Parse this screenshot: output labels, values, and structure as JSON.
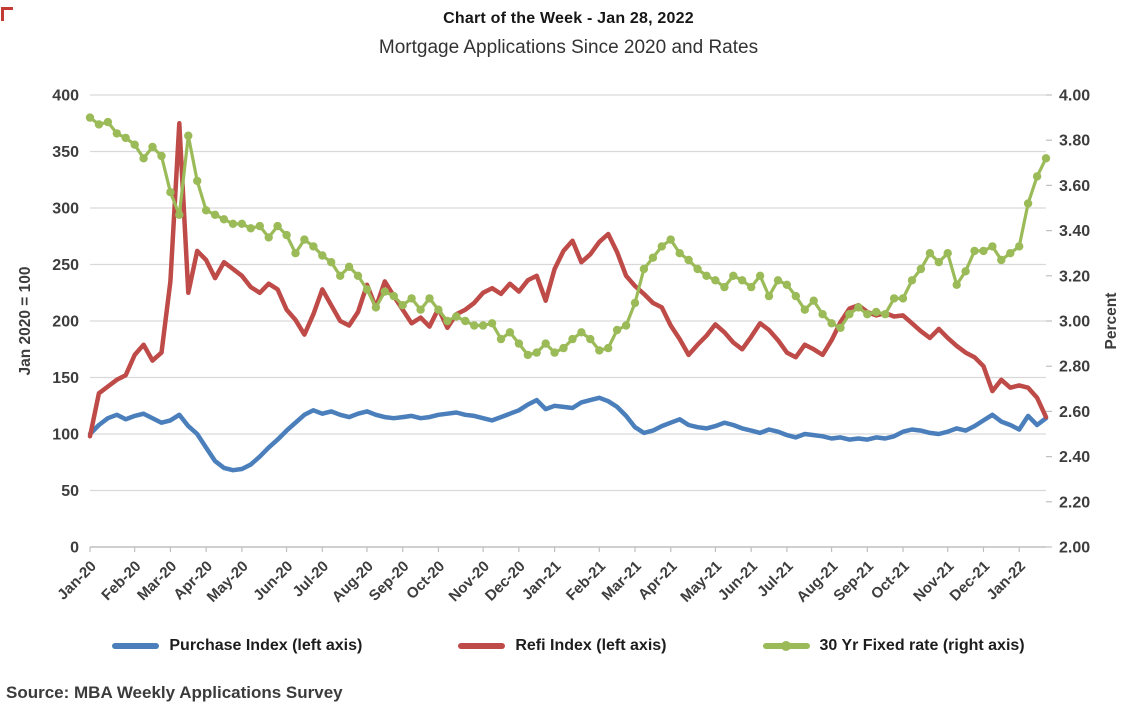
{
  "header": {
    "title": "Chart of the Week - Jan 28, 2022",
    "subtitle": "Mortgage Applications Since 2020 and Rates"
  },
  "source_note": "Source: MBA Weekly Applications Survey",
  "legend": [
    {
      "label": "Purchase Index (left axis)",
      "color": "#4a7fbc",
      "marker": false
    },
    {
      "label": "Refi Index (left axis)",
      "color": "#be4b48",
      "marker": false
    },
    {
      "label": "30 Yr Fixed rate (right axis)",
      "color": "#9bbb59",
      "marker": true
    }
  ],
  "chart_data": {
    "type": "line",
    "title": "Chart of the Week - Jan 28, 2022",
    "subtitle": "Mortgage Applications Since 2020 and Rates",
    "grid": "horizontal",
    "legend_position": "bottom",
    "x_unit": "weekly observations, Jan 2020 through Jan 2022",
    "x_tick_labels": [
      "Jan-20",
      "Feb-20",
      "Mar-20",
      "Apr-20",
      "May-20",
      "Jun-20",
      "Jul-20",
      "Aug-20",
      "Sep-20",
      "Oct-20",
      "Nov-20",
      "Dec-20",
      "Jan-21",
      "Feb-21",
      "Mar-21",
      "Apr-21",
      "May-21",
      "Jun-21",
      "Jul-21",
      "Aug-21",
      "Sep-21",
      "Oct-21",
      "Nov-21",
      "Dec-21",
      "Jan-22"
    ],
    "x_tick_index": [
      0,
      5,
      9,
      13,
      17,
      22,
      26,
      31,
      35,
      39,
      44,
      48,
      52,
      57,
      61,
      65,
      70,
      74,
      78,
      83,
      87,
      91,
      96,
      100,
      104
    ],
    "left_axis": {
      "label": "Jan 2020 = 100",
      "range": [
        0,
        400
      ],
      "ticks": [
        0,
        50,
        100,
        150,
        200,
        250,
        300,
        350,
        400
      ]
    },
    "right_axis": {
      "label": "Percent",
      "range": [
        2.0,
        4.0
      ],
      "ticks": [
        "2.00",
        "2.20",
        "2.40",
        "2.60",
        "2.80",
        "3.00",
        "3.20",
        "3.40",
        "3.60",
        "3.80",
        "4.00"
      ]
    },
    "series": [
      {
        "key": "purchase",
        "name": "Purchase Index (left axis)",
        "axis": "left",
        "color": "#4a7fbc",
        "marker": false,
        "values": [
          100,
          108,
          114,
          117,
          113,
          116,
          118,
          114,
          110,
          112,
          117,
          107,
          100,
          88,
          76,
          70,
          68,
          69,
          73,
          80,
          88,
          95,
          103,
          110,
          117,
          121,
          118,
          120,
          117,
          115,
          118,
          120,
          117,
          115,
          114,
          115,
          116,
          114,
          115,
          117,
          118,
          119,
          117,
          116,
          114,
          112,
          115,
          118,
          121,
          126,
          130,
          122,
          125,
          124,
          123,
          128,
          130,
          132,
          129,
          124,
          116,
          106,
          101,
          103,
          107,
          110,
          113,
          108,
          106,
          105,
          107,
          110,
          108,
          105,
          103,
          101,
          104,
          102,
          99,
          97,
          100,
          99,
          98,
          96,
          97,
          95,
          96,
          95,
          97,
          96,
          98,
          102,
          104,
          103,
          101,
          100,
          102,
          105,
          103,
          107,
          112,
          117,
          111,
          108,
          104,
          116,
          108,
          114
        ]
      },
      {
        "key": "refi",
        "name": "Refi Index (left axis)",
        "axis": "left",
        "color": "#be4b48",
        "marker": false,
        "values": [
          98,
          136,
          142,
          148,
          152,
          170,
          179,
          165,
          172,
          235,
          375,
          225,
          262,
          254,
          238,
          252,
          246,
          240,
          230,
          225,
          233,
          228,
          210,
          201,
          188,
          206,
          228,
          214,
          200,
          196,
          208,
          232,
          212,
          235,
          222,
          210,
          198,
          203,
          195,
          211,
          194,
          206,
          210,
          216,
          225,
          229,
          224,
          233,
          226,
          236,
          240,
          218,
          246,
          262,
          271,
          252,
          259,
          270,
          277,
          261,
          240,
          231,
          224,
          216,
          212,
          196,
          184,
          170,
          179,
          187,
          197,
          190,
          181,
          175,
          186,
          198,
          192,
          183,
          172,
          168,
          179,
          175,
          170,
          183,
          199,
          211,
          214,
          208,
          205,
          207,
          204,
          205,
          198,
          191,
          185,
          193,
          185,
          178,
          172,
          168,
          160,
          138,
          148,
          141,
          143,
          141,
          132,
          115
        ]
      },
      {
        "key": "rate",
        "name": "30 Yr Fixed rate (right axis)",
        "axis": "right",
        "color": "#9bbb59",
        "marker": true,
        "values": [
          3.9,
          3.87,
          3.88,
          3.83,
          3.81,
          3.78,
          3.72,
          3.77,
          3.73,
          3.57,
          3.47,
          3.82,
          3.62,
          3.49,
          3.47,
          3.45,
          3.43,
          3.43,
          3.41,
          3.42,
          3.37,
          3.42,
          3.38,
          3.3,
          3.36,
          3.33,
          3.29,
          3.26,
          3.2,
          3.24,
          3.2,
          3.14,
          3.06,
          3.13,
          3.11,
          3.07,
          3.1,
          3.05,
          3.1,
          3.05,
          3.0,
          3.02,
          3.0,
          2.98,
          2.98,
          2.99,
          2.92,
          2.95,
          2.9,
          2.85,
          2.86,
          2.9,
          2.86,
          2.88,
          2.92,
          2.95,
          2.92,
          2.87,
          2.88,
          2.96,
          2.98,
          3.08,
          3.23,
          3.28,
          3.33,
          3.36,
          3.3,
          3.27,
          3.23,
          3.2,
          3.18,
          3.15,
          3.2,
          3.18,
          3.15,
          3.2,
          3.11,
          3.18,
          3.16,
          3.11,
          3.05,
          3.09,
          3.03,
          2.99,
          2.97,
          3.03,
          3.06,
          3.03,
          3.04,
          3.03,
          3.1,
          3.1,
          3.18,
          3.23,
          3.3,
          3.26,
          3.3,
          3.16,
          3.22,
          3.31,
          3.31,
          3.33,
          3.27,
          3.3,
          3.33,
          3.52,
          3.64,
          3.72
        ]
      }
    ]
  },
  "style": {
    "gridline_color": "#d9d9d9",
    "axis_color": "#bfbfbf"
  }
}
